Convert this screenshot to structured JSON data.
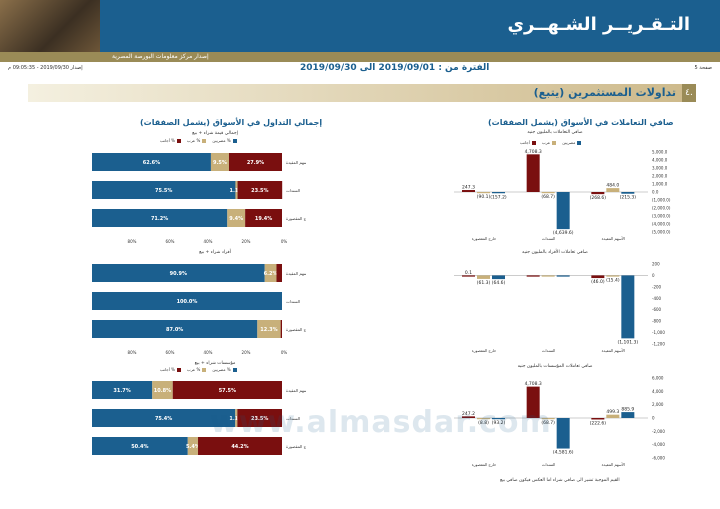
{
  "header": {
    "title": "التـقـريــر الشـهــري",
    "subtitle": "إصدار مركز معلومات البورصة المصرية",
    "page_label": "صفحة 5",
    "period": "الفترة من : 2019/09/01 الى 2019/09/30",
    "issue_date": "إصدار 2019/09/30 - 09:05:35 م"
  },
  "section": {
    "number": "٤.",
    "title": "تداولات المستثمرين (يتبع)"
  },
  "left_panel": {
    "title": "إجمالي التداول في الأسواق (يشمل الصفقات)",
    "legend": [
      "مصريين %",
      "عرب %",
      "أجانب %"
    ],
    "colors": {
      "egyptians": "#1b5f8f",
      "arabs": "#c8b07a",
      "foreigners": "#7a0f0f"
    },
    "xticks": [
      "80%",
      "60%",
      "40%",
      "20%",
      "0%"
    ]
  },
  "right_panel": {
    "title": "صافي التعاملات في الأسواق (يشمل الصفقات)",
    "legend": [
      "مصريين",
      "عرب",
      "أجانب"
    ]
  },
  "footnote": "القيم الموجبة تشير الى صافي شراء اما العكس فيكون صافي بيع",
  "watermark": "www.almasdar.com",
  "chart_data": [
    {
      "type": "bar",
      "stacked": true,
      "orientation": "horizontal",
      "title": "إجمالي قيمة شراء + بيع",
      "categories": [
        "الأسهم المقيدة",
        "السندات",
        "خارج المقصورة"
      ],
      "series": [
        {
          "name": "مصريين %",
          "values": [
            62.6,
            75.5,
            71.2
          ]
        },
        {
          "name": "عرب %",
          "values": [
            9.5,
            1.1,
            9.4
          ]
        },
        {
          "name": "أجانب %",
          "values": [
            27.9,
            23.5,
            19.4
          ]
        }
      ],
      "labels": [
        [
          "62.6%",
          "9.5%",
          "27.9%"
        ],
        [
          "75.5%",
          "1.1%",
          "23.5%"
        ],
        [
          "71.2%",
          "9.4%",
          "19.4%"
        ]
      ]
    },
    {
      "type": "bar",
      "stacked": true,
      "orientation": "horizontal",
      "title": "أفراد شراء + بيع",
      "categories": [
        "الأسهم المقيدة",
        "السندات",
        "خارج المقصورة"
      ],
      "series": [
        {
          "name": "مصريين %",
          "values": [
            90.9,
            100.0,
            87.0
          ]
        },
        {
          "name": "عرب %",
          "values": [
            6.2,
            0,
            12.3
          ]
        },
        {
          "name": "أجانب %",
          "values": [
            2.9,
            0,
            0.7
          ]
        }
      ],
      "labels": [
        [
          "90.9%",
          "6.2%",
          ""
        ],
        [
          "100.0%",
          "",
          ""
        ],
        [
          "87.0%",
          "12.3%",
          ""
        ]
      ]
    },
    {
      "type": "bar",
      "stacked": true,
      "orientation": "horizontal",
      "title": "مؤسسات شراء + بيع",
      "categories": [
        "الأسهم المقيدة",
        "السندات",
        "خارج المقصورة"
      ],
      "series": [
        {
          "name": "مصريين %",
          "values": [
            31.7,
            75.4,
            50.4
          ]
        },
        {
          "name": "عرب %",
          "values": [
            10.8,
            1.1,
            5.4
          ]
        },
        {
          "name": "أجانب %",
          "values": [
            57.5,
            23.5,
            44.2
          ]
        }
      ],
      "labels": [
        [
          "31.7%",
          "10.8%",
          "57.5%"
        ],
        [
          "75.4%",
          "1.1%",
          "23.5%"
        ],
        [
          "50.4%",
          "5.4%",
          "44.2%"
        ]
      ]
    },
    {
      "type": "bar",
      "orientation": "vertical",
      "title": "صافي التعاملات بالمليون جنيه",
      "categories": [
        "الأسهم المقيدة",
        "السندات",
        "خارج المقصورة"
      ],
      "series": [
        {
          "name": "مصريين",
          "values": [
            -215.3,
            -4639.6,
            -157.2
          ]
        },
        {
          "name": "عرب",
          "values": [
            484.0,
            -68.7,
            -90.1
          ]
        },
        {
          "name": "أجانب",
          "values": [
            -268.6,
            4708.3,
            247.3
          ]
        }
      ],
      "yticks": [
        "5,000.0",
        "4,000.0",
        "3,000.0",
        "2,000.0",
        "1,000.0",
        "0.0",
        "(1,000.0)",
        "(2,000.0)",
        "(3,000.0)",
        "(4,000.0)",
        "(5,000.0)"
      ],
      "ylim": [
        -5000,
        5000
      ]
    },
    {
      "type": "bar",
      "orientation": "vertical",
      "title": "صافي تعاملات الأفراد بالمليون جنيه",
      "categories": [
        "الأسهم المقيدة",
        "السندات",
        "خارج المقصورة"
      ],
      "series": [
        {
          "name": "مصريين",
          "values": [
            -1101.3,
            0,
            -64.6
          ]
        },
        {
          "name": "عرب",
          "values": [
            -15.4,
            0,
            -61.3
          ]
        },
        {
          "name": "أجانب",
          "values": [
            -46.0,
            0,
            0.1
          ]
        }
      ],
      "yticks": [
        "200",
        "0",
        "-200",
        "-400",
        "-600",
        "-800",
        "-1,000",
        "-1,200"
      ],
      "ylim": [
        -1200,
        200
      ]
    },
    {
      "type": "bar",
      "orientation": "vertical",
      "title": "صافي تعاملات المؤسسات بالمليون جنيه",
      "categories": [
        "الأسهم المقيدة",
        "السندات",
        "خارج المقصورة"
      ],
      "series": [
        {
          "name": "مصريين",
          "values": [
            885.9,
            -4581.6,
            -93.2
          ]
        },
        {
          "name": "عرب",
          "values": [
            499.3,
            -68.7,
            -8.8
          ]
        },
        {
          "name": "أجانب",
          "values": [
            -222.6,
            4708.3,
            247.2
          ]
        }
      ],
      "yticks": [
        "6,000",
        "4,000",
        "2,000",
        "0",
        "-2,000",
        "-4,000",
        "-6,000"
      ],
      "ylim": [
        -6000,
        6000
      ]
    }
  ]
}
